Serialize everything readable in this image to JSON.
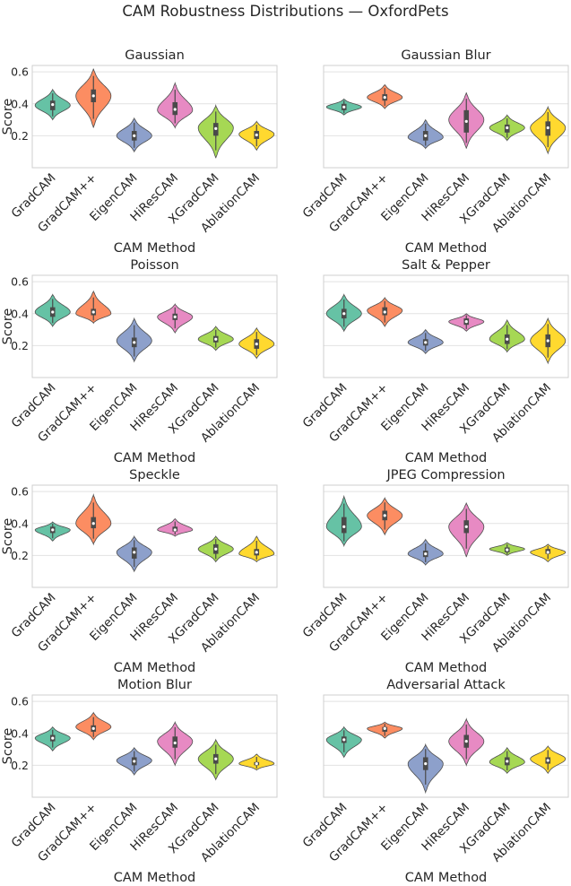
{
  "suptitle": "CAM Robustness Distributions — OxfordPets",
  "colors": {
    "GradCAM": "#66c2a5",
    "GradCAM++": "#fc8d62",
    "EigenCAM": "#8da0cb",
    "HiResCAM": "#e78ac3",
    "XGradCAM": "#a6d854",
    "AblationCAM": "#ffd92f",
    "box": "#4a4a4a",
    "grid": "#e2e2e2",
    "frame": "#cfcfcf"
  },
  "chart_data": [
    {
      "type": "violin",
      "title": "Gaussian",
      "xlabel": "CAM Method",
      "ylabel": "Score",
      "categories": [
        "GradCAM",
        "GradCAM++",
        "EigenCAM",
        "HiResCAM",
        "XGradCAM",
        "AblationCAM"
      ],
      "yticks": [
        "0.2",
        "0.4",
        "0.6"
      ],
      "ylim": [
        0.0,
        0.64
      ],
      "series": [
        {
          "name": "GradCAM",
          "min": 0.3,
          "q1": 0.36,
          "median": 0.395,
          "q3": 0.42,
          "max": 0.49,
          "mode": 0.39
        },
        {
          "name": "GradCAM++",
          "min": 0.25,
          "q1": 0.41,
          "median": 0.45,
          "q3": 0.49,
          "max": 0.62,
          "mode": 0.45
        },
        {
          "name": "EigenCAM",
          "min": 0.1,
          "q1": 0.17,
          "median": 0.2,
          "q3": 0.23,
          "max": 0.31,
          "mode": 0.2
        },
        {
          "name": "HiResCAM",
          "min": 0.25,
          "q1": 0.33,
          "median": 0.365,
          "q3": 0.41,
          "max": 0.53,
          "mode": 0.36
        },
        {
          "name": "XGradCAM",
          "min": 0.06,
          "q1": 0.2,
          "median": 0.245,
          "q3": 0.28,
          "max": 0.39,
          "mode": 0.25
        },
        {
          "name": "AblationCAM",
          "min": 0.11,
          "q1": 0.18,
          "median": 0.205,
          "q3": 0.23,
          "max": 0.29,
          "mode": 0.21
        }
      ]
    },
    {
      "type": "violin",
      "title": "Gaussian Blur",
      "xlabel": "CAM Method",
      "ylabel": "",
      "categories": [
        "GradCAM",
        "GradCAM++",
        "EigenCAM",
        "HiResCAM",
        "XGradCAM",
        "AblationCAM"
      ],
      "yticks": [],
      "ylim": [
        0.0,
        0.64
      ],
      "series": [
        {
          "name": "GradCAM",
          "min": 0.33,
          "q1": 0.36,
          "median": 0.38,
          "q3": 0.4,
          "max": 0.43,
          "mode": 0.38
        },
        {
          "name": "GradCAM++",
          "min": 0.37,
          "q1": 0.42,
          "median": 0.44,
          "q3": 0.46,
          "max": 0.52,
          "mode": 0.44
        },
        {
          "name": "EigenCAM",
          "min": 0.12,
          "q1": 0.17,
          "median": 0.2,
          "q3": 0.23,
          "max": 0.3,
          "mode": 0.19
        },
        {
          "name": "HiResCAM",
          "min": 0.12,
          "q1": 0.22,
          "median": 0.29,
          "q3": 0.36,
          "max": 0.47,
          "mode": 0.3
        },
        {
          "name": "XGradCAM",
          "min": 0.17,
          "q1": 0.22,
          "median": 0.25,
          "q3": 0.27,
          "max": 0.33,
          "mode": 0.25
        },
        {
          "name": "AblationCAM",
          "min": 0.09,
          "q1": 0.2,
          "median": 0.25,
          "q3": 0.29,
          "max": 0.38,
          "mode": 0.25
        }
      ]
    },
    {
      "type": "violin",
      "title": "Poisson",
      "xlabel": "CAM Method",
      "ylabel": "Score",
      "categories": [
        "GradCAM",
        "GradCAM++",
        "EigenCAM",
        "HiResCAM",
        "XGradCAM",
        "AblationCAM"
      ],
      "yticks": [
        "0.2",
        "0.4",
        "0.6"
      ],
      "ylim": [
        0.0,
        0.64
      ],
      "series": [
        {
          "name": "GradCAM",
          "min": 0.32,
          "q1": 0.38,
          "median": 0.41,
          "q3": 0.44,
          "max": 0.52,
          "mode": 0.41
        },
        {
          "name": "GradCAM++",
          "min": 0.34,
          "q1": 0.39,
          "median": 0.41,
          "q3": 0.43,
          "max": 0.54,
          "mode": 0.4
        },
        {
          "name": "EigenCAM",
          "min": 0.1,
          "q1": 0.19,
          "median": 0.22,
          "q3": 0.25,
          "max": 0.37,
          "mode": 0.23
        },
        {
          "name": "HiResCAM",
          "min": 0.28,
          "q1": 0.36,
          "median": 0.38,
          "q3": 0.4,
          "max": 0.46,
          "mode": 0.38
        },
        {
          "name": "XGradCAM",
          "min": 0.17,
          "q1": 0.22,
          "median": 0.24,
          "q3": 0.26,
          "max": 0.32,
          "mode": 0.24
        },
        {
          "name": "AblationCAM",
          "min": 0.12,
          "q1": 0.18,
          "median": 0.21,
          "q3": 0.24,
          "max": 0.31,
          "mode": 0.21
        }
      ]
    },
    {
      "type": "violin",
      "title": "Salt & Pepper",
      "xlabel": "CAM Method",
      "ylabel": "",
      "categories": [
        "GradCAM",
        "GradCAM++",
        "EigenCAM",
        "HiResCAM",
        "XGradCAM",
        "AblationCAM"
      ],
      "yticks": [],
      "ylim": [
        0.0,
        0.64
      ],
      "series": [
        {
          "name": "GradCAM",
          "min": 0.29,
          "q1": 0.37,
          "median": 0.4,
          "q3": 0.43,
          "max": 0.52,
          "mode": 0.4
        },
        {
          "name": "GradCAM++",
          "min": 0.32,
          "q1": 0.39,
          "median": 0.41,
          "q3": 0.44,
          "max": 0.5,
          "mode": 0.42
        },
        {
          "name": "EigenCAM",
          "min": 0.15,
          "q1": 0.2,
          "median": 0.22,
          "q3": 0.24,
          "max": 0.3,
          "mode": 0.22
        },
        {
          "name": "HiResCAM",
          "min": 0.29,
          "q1": 0.33,
          "median": 0.35,
          "q3": 0.37,
          "max": 0.4,
          "mode": 0.35
        },
        {
          "name": "XGradCAM",
          "min": 0.16,
          "q1": 0.21,
          "median": 0.24,
          "q3": 0.27,
          "max": 0.36,
          "mode": 0.24
        },
        {
          "name": "AblationCAM",
          "min": 0.09,
          "q1": 0.19,
          "median": 0.23,
          "q3": 0.27,
          "max": 0.37,
          "mode": 0.23
        }
      ]
    },
    {
      "type": "violin",
      "title": "Speckle",
      "xlabel": "CAM Method",
      "ylabel": "Score",
      "categories": [
        "GradCAM",
        "GradCAM++",
        "EigenCAM",
        "HiResCAM",
        "XGradCAM",
        "AblationCAM"
      ],
      "yticks": [
        "0.2",
        "0.4",
        "0.6"
      ],
      "ylim": [
        0.0,
        0.64
      ],
      "series": [
        {
          "name": "GradCAM",
          "min": 0.29,
          "q1": 0.34,
          "median": 0.36,
          "q3": 0.38,
          "max": 0.41,
          "mode": 0.36
        },
        {
          "name": "GradCAM++",
          "min": 0.27,
          "q1": 0.37,
          "median": 0.4,
          "q3": 0.44,
          "max": 0.58,
          "mode": 0.4
        },
        {
          "name": "EigenCAM",
          "min": 0.1,
          "q1": 0.18,
          "median": 0.22,
          "q3": 0.25,
          "max": 0.32,
          "mode": 0.22
        },
        {
          "name": "HiResCAM",
          "min": 0.32,
          "q1": 0.35,
          "median": 0.36,
          "q3": 0.38,
          "max": 0.43,
          "mode": 0.36
        },
        {
          "name": "XGradCAM",
          "min": 0.16,
          "q1": 0.21,
          "median": 0.24,
          "q3": 0.27,
          "max": 0.32,
          "mode": 0.24
        },
        {
          "name": "AblationCAM",
          "min": 0.16,
          "q1": 0.2,
          "median": 0.22,
          "q3": 0.24,
          "max": 0.32,
          "mode": 0.21
        }
      ]
    },
    {
      "type": "violin",
      "title": "JPEG Compression",
      "xlabel": "CAM Method",
      "ylabel": "",
      "categories": [
        "GradCAM",
        "GradCAM++",
        "EigenCAM",
        "HiResCAM",
        "XGradCAM",
        "AblationCAM"
      ],
      "yticks": [],
      "ylim": [
        0.0,
        0.64
      ],
      "series": [
        {
          "name": "GradCAM",
          "min": 0.26,
          "q1": 0.34,
          "median": 0.38,
          "q3": 0.44,
          "max": 0.57,
          "mode": 0.38
        },
        {
          "name": "GradCAM++",
          "min": 0.33,
          "q1": 0.42,
          "median": 0.45,
          "q3": 0.48,
          "max": 0.56,
          "mode": 0.45
        },
        {
          "name": "EigenCAM",
          "min": 0.14,
          "q1": 0.19,
          "median": 0.21,
          "q3": 0.23,
          "max": 0.3,
          "mode": 0.21
        },
        {
          "name": "HiResCAM",
          "min": 0.19,
          "q1": 0.34,
          "median": 0.38,
          "q3": 0.42,
          "max": 0.53,
          "mode": 0.38
        },
        {
          "name": "XGradCAM",
          "min": 0.2,
          "q1": 0.22,
          "median": 0.235,
          "q3": 0.25,
          "max": 0.28,
          "mode": 0.24
        },
        {
          "name": "AblationCAM",
          "min": 0.16,
          "q1": 0.21,
          "median": 0.22,
          "q3": 0.24,
          "max": 0.27,
          "mode": 0.22
        }
      ]
    },
    {
      "type": "violin",
      "title": "Motion Blur",
      "xlabel": "CAM Method",
      "ylabel": "Score",
      "categories": [
        "GradCAM",
        "GradCAM++",
        "EigenCAM",
        "HiResCAM",
        "XGradCAM",
        "AblationCAM"
      ],
      "yticks": [
        "0.2",
        "0.4",
        "0.6"
      ],
      "ylim": [
        0.0,
        0.64
      ],
      "series": [
        {
          "name": "GradCAM",
          "min": 0.29,
          "q1": 0.35,
          "median": 0.37,
          "q3": 0.39,
          "max": 0.44,
          "mode": 0.37
        },
        {
          "name": "GradCAM++",
          "min": 0.36,
          "q1": 0.41,
          "median": 0.43,
          "q3": 0.45,
          "max": 0.53,
          "mode": 0.44
        },
        {
          "name": "EigenCAM",
          "min": 0.14,
          "q1": 0.2,
          "median": 0.225,
          "q3": 0.25,
          "max": 0.31,
          "mode": 0.23
        },
        {
          "name": "HiResCAM",
          "min": 0.2,
          "q1": 0.31,
          "median": 0.34,
          "q3": 0.38,
          "max": 0.47,
          "mode": 0.35
        },
        {
          "name": "XGradCAM",
          "min": 0.11,
          "q1": 0.21,
          "median": 0.24,
          "q3": 0.27,
          "max": 0.36,
          "mode": 0.24
        },
        {
          "name": "AblationCAM",
          "min": 0.17,
          "q1": 0.2,
          "median": 0.21,
          "q3": 0.22,
          "max": 0.27,
          "mode": 0.21
        }
      ]
    },
    {
      "type": "violin",
      "title": "Adversarial Attack",
      "xlabel": "CAM Method",
      "ylabel": "",
      "categories": [
        "GradCAM",
        "GradCAM++",
        "EigenCAM",
        "HiResCAM",
        "XGradCAM",
        "AblationCAM"
      ],
      "yticks": [],
      "ylim": [
        0.0,
        0.64
      ],
      "series": [
        {
          "name": "GradCAM",
          "min": 0.25,
          "q1": 0.34,
          "median": 0.36,
          "q3": 0.38,
          "max": 0.44,
          "mode": 0.36
        },
        {
          "name": "GradCAM++",
          "min": 0.37,
          "q1": 0.41,
          "median": 0.43,
          "q3": 0.44,
          "max": 0.47,
          "mode": 0.43
        },
        {
          "name": "EigenCAM",
          "min": 0.03,
          "q1": 0.17,
          "median": 0.21,
          "q3": 0.25,
          "max": 0.33,
          "mode": 0.21
        },
        {
          "name": "HiResCAM",
          "min": 0.2,
          "q1": 0.31,
          "median": 0.35,
          "q3": 0.39,
          "max": 0.49,
          "mode": 0.35
        },
        {
          "name": "XGradCAM",
          "min": 0.15,
          "q1": 0.2,
          "median": 0.225,
          "q3": 0.25,
          "max": 0.31,
          "mode": 0.22
        },
        {
          "name": "AblationCAM",
          "min": 0.15,
          "q1": 0.21,
          "median": 0.23,
          "q3": 0.25,
          "max": 0.32,
          "mode": 0.24
        }
      ]
    }
  ]
}
